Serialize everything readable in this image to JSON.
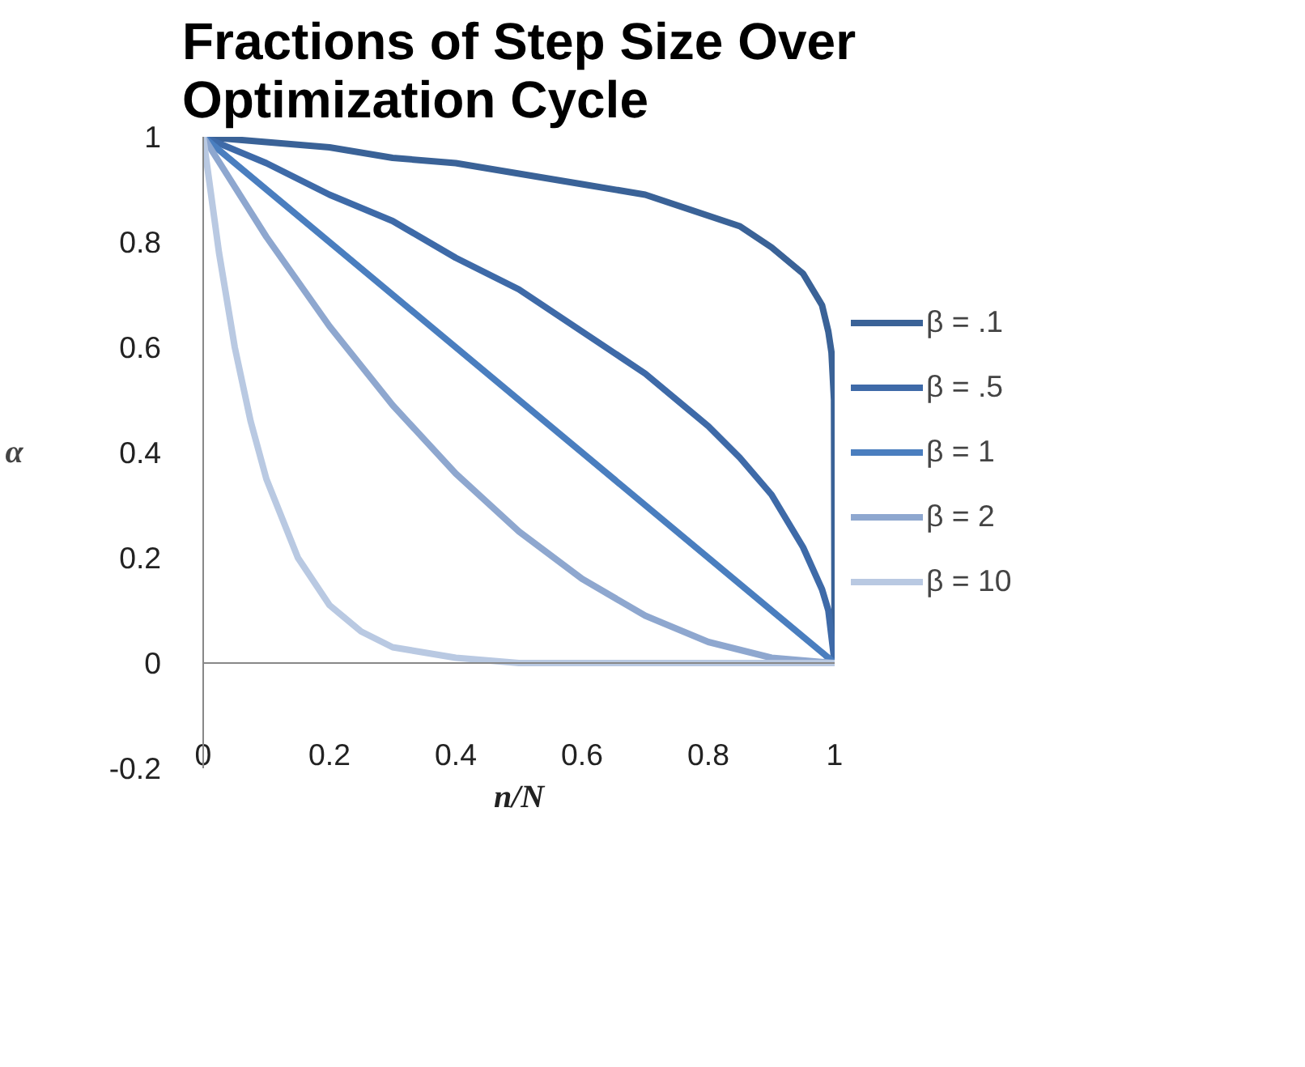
{
  "chart_data": {
    "type": "line",
    "title": "Fractions of Step Size Over\nOptimization Cycle",
    "xlabel": "n/N",
    "ylabel": "α",
    "xlim": [
      0,
      1
    ],
    "ylim": [
      -0.2,
      1
    ],
    "xticks": [
      0,
      0.2,
      0.4,
      0.6,
      0.8,
      1
    ],
    "yticks": [
      -0.2,
      0,
      0.2,
      0.4,
      0.6,
      0.8,
      1
    ],
    "grid": false,
    "legend": "right",
    "marker": "none",
    "line_style": "solid",
    "series": [
      {
        "name": "β = .1",
        "color": "#3a6297",
        "x": [
          0,
          0.1,
          0.2,
          0.3,
          0.4,
          0.5,
          0.6,
          0.7,
          0.8,
          0.85,
          0.9,
          0.95,
          0.98,
          0.99,
          0.995,
          0.999,
          1
        ],
        "values": [
          1,
          0.99,
          0.98,
          0.96,
          0.95,
          0.93,
          0.91,
          0.89,
          0.85,
          0.83,
          0.79,
          0.74,
          0.68,
          0.63,
          0.59,
          0.5,
          0
        ]
      },
      {
        "name": "β = .5",
        "color": "#3e6aa8",
        "x": [
          0,
          0.1,
          0.2,
          0.3,
          0.4,
          0.5,
          0.6,
          0.7,
          0.8,
          0.85,
          0.9,
          0.95,
          0.98,
          0.99,
          1
        ],
        "values": [
          1,
          0.95,
          0.89,
          0.84,
          0.77,
          0.71,
          0.63,
          0.55,
          0.45,
          0.39,
          0.32,
          0.22,
          0.14,
          0.1,
          0
        ]
      },
      {
        "name": "β = 1",
        "color": "#4a7ebf",
        "x": [
          0,
          1
        ],
        "values": [
          1,
          0
        ]
      },
      {
        "name": "β = 2",
        "color": "#8ea7cf",
        "x": [
          0,
          0.1,
          0.2,
          0.3,
          0.4,
          0.5,
          0.6,
          0.7,
          0.8,
          0.9,
          1
        ],
        "values": [
          1,
          0.81,
          0.64,
          0.49,
          0.36,
          0.25,
          0.16,
          0.09,
          0.04,
          0.01,
          0
        ]
      },
      {
        "name": "β = 10",
        "color": "#b9c9e2",
        "x": [
          0,
          0.025,
          0.05,
          0.075,
          0.1,
          0.15,
          0.2,
          0.25,
          0.3,
          0.4,
          0.5,
          1
        ],
        "values": [
          1,
          0.78,
          0.6,
          0.46,
          0.35,
          0.2,
          0.11,
          0.06,
          0.03,
          0.01,
          0,
          0
        ]
      }
    ]
  }
}
